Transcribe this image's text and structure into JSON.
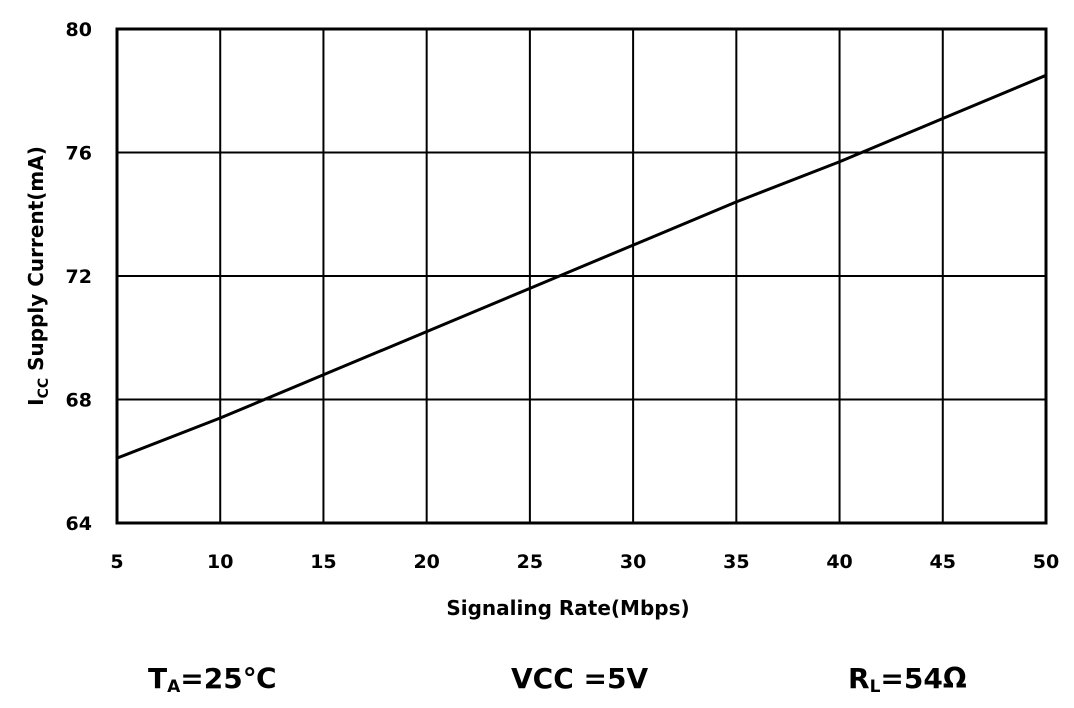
{
  "chart_data": {
    "type": "line",
    "title": "",
    "xlabel": "Signaling Rate(Mbps)",
    "ylabel": {
      "main": "I",
      "sub": "CC",
      "rest": " Supply Current(mA)"
    },
    "xlim": [
      5,
      50
    ],
    "ylim": [
      64,
      80
    ],
    "x_ticks": [
      5,
      10,
      15,
      20,
      25,
      30,
      35,
      40,
      45,
      50
    ],
    "y_ticks": [
      64,
      68,
      72,
      76,
      80
    ],
    "grid": true,
    "series": [
      {
        "x": [
          5,
          10,
          15,
          20,
          25,
          30,
          35,
          40,
          45,
          50
        ],
        "y": [
          66.1,
          67.4,
          68.8,
          70.2,
          71.6,
          73.0,
          74.4,
          75.7,
          77.1,
          78.5
        ],
        "color": "#000000"
      }
    ]
  },
  "conditions": {
    "ta": {
      "main": "T",
      "sub": "A",
      "rest": "=25℃"
    },
    "vcc": {
      "text": "VCC =5V"
    },
    "rl": {
      "main": "R",
      "sub": "L",
      "rest": "=54Ω"
    }
  }
}
